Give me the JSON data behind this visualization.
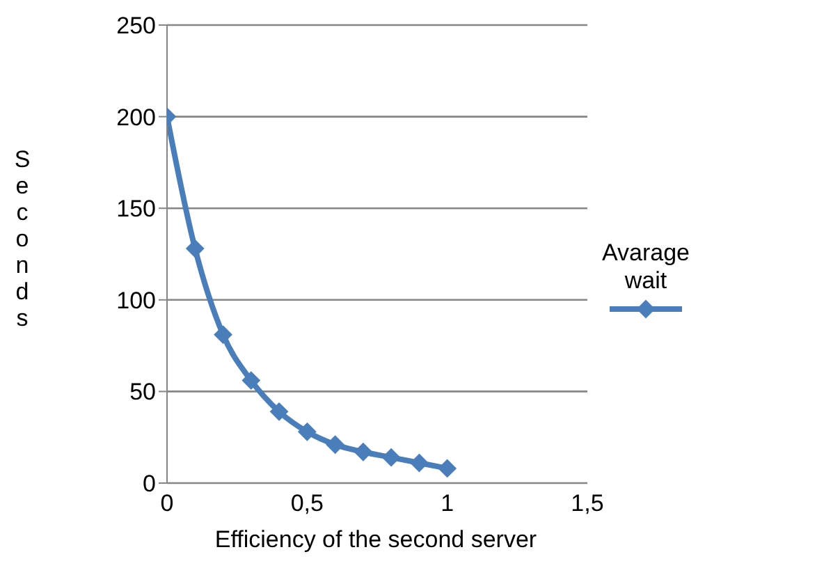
{
  "chart_data": {
    "type": "line",
    "xlabel": "Efficiency of the second server",
    "ylabel": "Seconds",
    "x": [
      0,
      0.1,
      0.2,
      0.3,
      0.4,
      0.5,
      0.6,
      0.7,
      0.8,
      0.9,
      1
    ],
    "series": [
      {
        "name": "Avarage wait",
        "color": "#4a7ebb",
        "values": [
          200,
          128,
          81,
          56,
          39,
          28,
          21,
          17,
          14,
          11,
          8
        ]
      }
    ],
    "xlim": [
      0,
      1.5
    ],
    "xticks": [
      0,
      {
        "value": 0.5,
        "label": "0,5"
      },
      1,
      {
        "value": 1.5,
        "label": "1,5"
      }
    ],
    "ylim": [
      0,
      250
    ],
    "yticks": [
      0,
      50,
      100,
      150,
      200,
      250
    ],
    "grid": "y",
    "legend": "right",
    "marker": "diamond",
    "line_style": "solid"
  }
}
